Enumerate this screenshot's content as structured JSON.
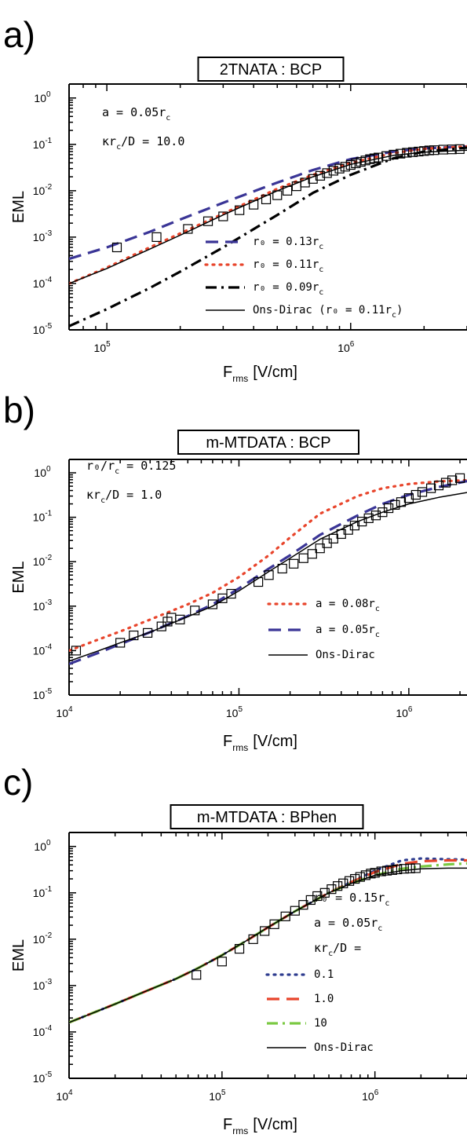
{
  "colors": {
    "blue": "#3a3596",
    "red": "#e8452c",
    "black": "#000000",
    "green": "#7bc943",
    "navy": "#2e3c8f"
  },
  "chart_data": [
    {
      "type": "line",
      "panel_label": "a)",
      "title": "2TNATA : BCP",
      "xlabel": "F",
      "xlabel_sub": "rms",
      "xlabel_unit": "[V/cm]",
      "ylabel": "EML",
      "x_scale": "log",
      "y_scale": "log",
      "xlim": [
        70000,
        3000000
      ],
      "ylim": [
        1e-05,
        2
      ],
      "x_ticks": [
        {
          "value": 100000,
          "base": "10",
          "exp": "5"
        },
        {
          "value": 1000000,
          "base": "10",
          "exp": "6"
        }
      ],
      "y_ticks": [
        {
          "value": 1,
          "base": "10",
          "exp": "0"
        },
        {
          "value": 0.1,
          "base": "10",
          "exp": "-1"
        },
        {
          "value": 0.01,
          "base": "10",
          "exp": "-2"
        },
        {
          "value": 0.001,
          "base": "10",
          "exp": "-3"
        },
        {
          "value": 0.0001,
          "base": "10",
          "exp": "-4"
        },
        {
          "value": 1e-05,
          "base": "10",
          "exp": "-5"
        }
      ],
      "annotations": [
        {
          "main": "a = 0.05r",
          "sub": "c",
          "tail": ""
        },
        {
          "main": "κr",
          "sub": "c",
          "tail": "/D = 10.0"
        }
      ],
      "legend_placement": "bottom-right",
      "series": [
        {
          "name": "r₀ = 0.13r",
          "name_sub": "c",
          "name_tail": "",
          "style": "dash-long",
          "color": "#3a3596",
          "x": [
            70000,
            100000,
            150000,
            200000,
            300000,
            500000,
            700000,
            1000000,
            1500000,
            2000000,
            3000000
          ],
          "y": [
            0.00034,
            0.0006,
            0.0013,
            0.0024,
            0.0055,
            0.015,
            0.028,
            0.048,
            0.07,
            0.082,
            0.09
          ]
        },
        {
          "name": "r₀ = 0.11r",
          "name_sub": "c",
          "name_tail": "",
          "style": "dot",
          "color": "#e8452c",
          "x": [
            70000,
            100000,
            150000,
            200000,
            300000,
            500000,
            700000,
            1000000,
            1500000,
            2000000,
            3000000
          ],
          "y": [
            0.0001,
            0.00022,
            0.0006,
            0.0012,
            0.0032,
            0.011,
            0.022,
            0.04,
            0.065,
            0.08,
            0.09
          ]
        },
        {
          "name": "r₀ = 0.09r",
          "name_sub": "c",
          "name_tail": "",
          "style": "dash-dot",
          "color": "#000000",
          "x": [
            70000,
            100000,
            150000,
            200000,
            300000,
            500000,
            700000,
            1000000,
            1500000,
            2000000,
            3000000
          ],
          "y": [
            1.2e-05,
            2.8e-05,
            8e-05,
            0.00018,
            0.0006,
            0.003,
            0.009,
            0.022,
            0.05,
            0.07,
            0.085
          ]
        },
        {
          "name": "Ons-Dirac (r₀ = 0.11r",
          "name_sub": "c",
          "name_tail": ")",
          "style": "solid",
          "color": "#000000",
          "x": [
            70000,
            100000,
            150000,
            200000,
            300000,
            500000,
            700000,
            1000000,
            1500000,
            2000000,
            3000000
          ],
          "y": [
            0.0001,
            0.00021,
            0.00055,
            0.0011,
            0.003,
            0.01,
            0.02,
            0.037,
            0.058,
            0.068,
            0.075
          ]
        },
        {
          "name": "",
          "style": "markers",
          "color": "#000000",
          "x": [
            110000,
            160000,
            215000,
            260000,
            300000,
            350000,
            400000,
            450000,
            500000,
            550000,
            600000,
            650000,
            700000,
            750000,
            800000,
            850000,
            900000,
            950000,
            1000000,
            1050000,
            1100000,
            1150000,
            1200000,
            1250000,
            1300000,
            1400000,
            1500000,
            1600000,
            1700000,
            1800000,
            1900000,
            2000000,
            2100000,
            2200000,
            2400000,
            2600000,
            2800000
          ],
          "y": [
            0.0006,
            0.001,
            0.0015,
            0.0022,
            0.0028,
            0.0038,
            0.005,
            0.0065,
            0.008,
            0.01,
            0.0125,
            0.015,
            0.018,
            0.021,
            0.024,
            0.027,
            0.03,
            0.033,
            0.036,
            0.039,
            0.042,
            0.045,
            0.048,
            0.05,
            0.052,
            0.056,
            0.06,
            0.063,
            0.066,
            0.068,
            0.07,
            0.072,
            0.074,
            0.075,
            0.077,
            0.078,
            0.079
          ]
        }
      ]
    },
    {
      "type": "line",
      "panel_label": "b)",
      "title": "m-MTDATA : BCP",
      "xlabel": "F",
      "xlabel_sub": "rms",
      "xlabel_unit": "[V/cm]",
      "ylabel": "EML",
      "x_scale": "log",
      "y_scale": "log",
      "xlim": [
        10000,
        2200000
      ],
      "ylim": [
        1e-05,
        2
      ],
      "x_ticks": [
        {
          "value": 10000,
          "base": "10",
          "exp": "4"
        },
        {
          "value": 100000,
          "base": "10",
          "exp": "5"
        },
        {
          "value": 1000000,
          "base": "10",
          "exp": "6"
        }
      ],
      "y_ticks": [
        {
          "value": 1,
          "base": "10",
          "exp": "0"
        },
        {
          "value": 0.1,
          "base": "10",
          "exp": "-1"
        },
        {
          "value": 0.01,
          "base": "10",
          "exp": "-2"
        },
        {
          "value": 0.001,
          "base": "10",
          "exp": "-3"
        },
        {
          "value": 0.0001,
          "base": "10",
          "exp": "-4"
        },
        {
          "value": 1e-05,
          "base": "10",
          "exp": "-5"
        }
      ],
      "annotations": [
        {
          "main": "r₀/r",
          "sub": "c",
          "tail": " = 0.125"
        },
        {
          "main": "κr",
          "sub": "c",
          "tail": "/D = 1.0"
        }
      ],
      "legend_placement": "bottom-right",
      "series": [
        {
          "name": "a = 0.08r",
          "name_sub": "c",
          "name_tail": "",
          "style": "dot",
          "color": "#e8452c",
          "x": [
            10000,
            15000,
            20000,
            30000,
            50000,
            70000,
            100000,
            150000,
            200000,
            300000,
            500000,
            700000,
            1000000,
            1500000,
            2200000
          ],
          "y": [
            0.0001,
            0.00018,
            0.00027,
            0.0005,
            0.0011,
            0.002,
            0.0045,
            0.014,
            0.035,
            0.12,
            0.3,
            0.45,
            0.56,
            0.64,
            0.68
          ]
        },
        {
          "name": "a = 0.05r",
          "name_sub": "c",
          "name_tail": "",
          "style": "dash-long",
          "color": "#3a3596",
          "x": [
            10000,
            15000,
            20000,
            30000,
            50000,
            70000,
            100000,
            150000,
            200000,
            300000,
            500000,
            700000,
            1000000,
            1500000,
            2200000
          ],
          "y": [
            5e-05,
            9e-05,
            0.00014,
            0.00026,
            0.0006,
            0.0011,
            0.0025,
            0.007,
            0.014,
            0.04,
            0.11,
            0.2,
            0.32,
            0.48,
            0.65
          ]
        },
        {
          "name": "Ons-Dirac",
          "name_sub": "",
          "name_tail": "",
          "style": "solid",
          "color": "#000000",
          "x": [
            10000,
            15000,
            20000,
            30000,
            50000,
            70000,
            100000,
            150000,
            200000,
            300000,
            500000,
            700000,
            1000000,
            1500000,
            2200000
          ],
          "y": [
            5.8e-05,
            0.0001,
            0.00015,
            0.00026,
            0.00058,
            0.001,
            0.0022,
            0.006,
            0.012,
            0.032,
            0.08,
            0.13,
            0.2,
            0.28,
            0.36
          ]
        },
        {
          "name": "",
          "style": "markers",
          "color": "#000000",
          "x": [
            11000,
            20000,
            24000,
            29000,
            35000,
            38000,
            40000,
            45000,
            55000,
            70000,
            80000,
            90000,
            130000,
            150000,
            180000,
            210000,
            240000,
            270000,
            300000,
            330000,
            360000,
            400000,
            440000,
            480000,
            530000,
            580000,
            640000,
            700000,
            760000,
            830000,
            900000,
            1000000,
            1100000,
            1200000,
            1350000,
            1500000,
            1650000,
            1800000,
            2000000
          ],
          "y": [
            0.0001,
            0.00015,
            0.00022,
            0.00025,
            0.00035,
            0.00045,
            0.00055,
            0.0005,
            0.0008,
            0.0011,
            0.0015,
            0.0019,
            0.0035,
            0.005,
            0.007,
            0.009,
            0.012,
            0.015,
            0.02,
            0.026,
            0.033,
            0.042,
            0.052,
            0.065,
            0.08,
            0.095,
            0.11,
            0.13,
            0.16,
            0.19,
            0.22,
            0.27,
            0.32,
            0.37,
            0.45,
            0.52,
            0.6,
            0.68,
            0.76
          ]
        }
      ]
    },
    {
      "type": "line",
      "panel_label": "c)",
      "title": "m-MTDATA : BPhen",
      "xlabel": "F",
      "xlabel_sub": "rms",
      "xlabel_unit": "[V/cm]",
      "ylabel": "EML",
      "x_scale": "log",
      "y_scale": "log",
      "xlim": [
        10000,
        4000000
      ],
      "ylim": [
        1e-05,
        2
      ],
      "x_ticks": [
        {
          "value": 10000,
          "base": "10",
          "exp": "4"
        },
        {
          "value": 100000,
          "base": "10",
          "exp": "5"
        },
        {
          "value": 1000000,
          "base": "10",
          "exp": "6"
        }
      ],
      "y_ticks": [
        {
          "value": 1,
          "base": "10",
          "exp": "0"
        },
        {
          "value": 0.1,
          "base": "10",
          "exp": "-1"
        },
        {
          "value": 0.01,
          "base": "10",
          "exp": "-2"
        },
        {
          "value": 0.001,
          "base": "10",
          "exp": "-3"
        },
        {
          "value": 0.0001,
          "base": "10",
          "exp": "-4"
        },
        {
          "value": 1e-05,
          "base": "10",
          "exp": "-5"
        }
      ],
      "annotations": [
        {
          "main": "r₀ = 0.15r",
          "sub": "c",
          "tail": ""
        },
        {
          "main": "a = 0.05r",
          "sub": "c",
          "tail": ""
        },
        {
          "main": "κr",
          "sub": "c",
          "tail": "/D ="
        }
      ],
      "legend_placement": "bottom-right",
      "series": [
        {
          "name": "0.1",
          "name_sub": "",
          "name_tail": "",
          "style": "dot",
          "color": "#2e3c8f",
          "x": [
            10000,
            20000,
            30000,
            50000,
            70000,
            100000,
            150000,
            200000,
            300000,
            500000,
            700000,
            1000000,
            1500000,
            2000000,
            3000000,
            4000000
          ],
          "y": [
            0.00016,
            0.0004,
            0.0007,
            0.0014,
            0.0024,
            0.0045,
            0.01,
            0.018,
            0.04,
            0.1,
            0.17,
            0.3,
            0.5,
            0.55,
            0.53,
            0.52
          ]
        },
        {
          "name": "1.0",
          "name_sub": "",
          "name_tail": "",
          "style": "dash-long",
          "color": "#e8452c",
          "x": [
            10000,
            20000,
            30000,
            50000,
            70000,
            100000,
            150000,
            200000,
            300000,
            500000,
            700000,
            1000000,
            1500000,
            2000000,
            3000000,
            4000000
          ],
          "y": [
            0.00016,
            0.0004,
            0.0007,
            0.0014,
            0.0024,
            0.0045,
            0.01,
            0.018,
            0.04,
            0.1,
            0.17,
            0.28,
            0.42,
            0.48,
            0.5,
            0.5
          ]
        },
        {
          "name": "10",
          "name_sub": "",
          "name_tail": "",
          "style": "dash-dot",
          "color": "#7bc943",
          "x": [
            10000,
            20000,
            30000,
            50000,
            70000,
            100000,
            150000,
            200000,
            300000,
            500000,
            700000,
            1000000,
            1500000,
            2000000,
            3000000,
            4000000
          ],
          "y": [
            0.00016,
            0.0004,
            0.0007,
            0.0014,
            0.0024,
            0.0045,
            0.01,
            0.018,
            0.04,
            0.1,
            0.16,
            0.24,
            0.33,
            0.37,
            0.41,
            0.43
          ]
        },
        {
          "name": "Ons-Dirac",
          "name_sub": "",
          "name_tail": "",
          "style": "solid",
          "color": "#000000",
          "x": [
            10000,
            20000,
            30000,
            50000,
            70000,
            100000,
            150000,
            200000,
            300000,
            500000,
            700000,
            1000000,
            1500000,
            2000000,
            3000000,
            4000000
          ],
          "y": [
            0.00016,
            0.0004,
            0.0007,
            0.0014,
            0.0024,
            0.0045,
            0.01,
            0.018,
            0.04,
            0.1,
            0.16,
            0.24,
            0.3,
            0.33,
            0.34,
            0.34
          ]
        },
        {
          "name": "",
          "style": "markers",
          "color": "#000000",
          "x": [
            68000,
            100000,
            130000,
            160000,
            190000,
            220000,
            260000,
            300000,
            340000,
            380000,
            420000,
            470000,
            520000,
            570000,
            620000,
            680000,
            740000,
            800000,
            870000,
            940000,
            1000000,
            1100000,
            1200000,
            1300000,
            1400000,
            1550000,
            1700000,
            1850000
          ],
          "y": [
            0.0017,
            0.0033,
            0.0062,
            0.01,
            0.015,
            0.021,
            0.031,
            0.041,
            0.055,
            0.07,
            0.085,
            0.1,
            0.12,
            0.14,
            0.16,
            0.18,
            0.2,
            0.22,
            0.24,
            0.26,
            0.27,
            0.29,
            0.3,
            0.31,
            0.32,
            0.33,
            0.335,
            0.34
          ]
        }
      ]
    }
  ]
}
